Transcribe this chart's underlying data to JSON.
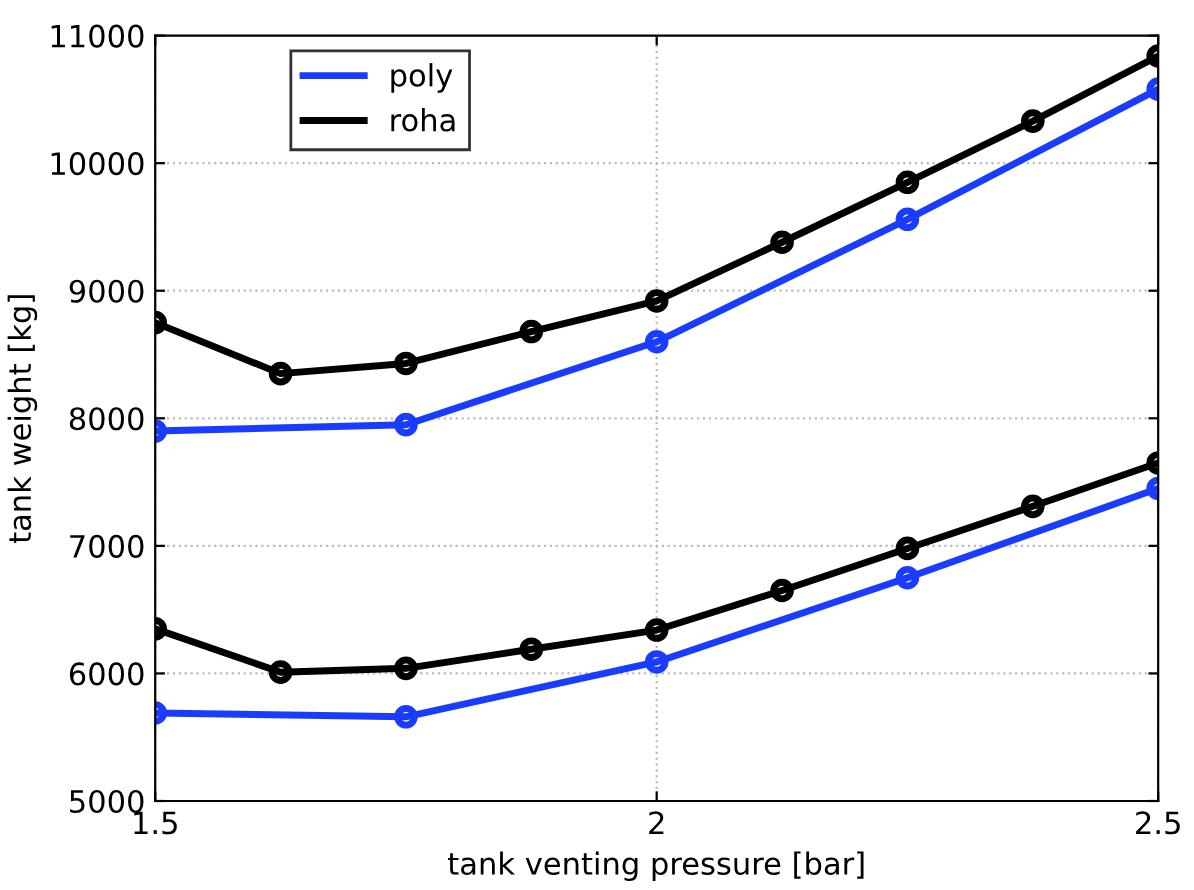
{
  "chart_data": {
    "type": "line",
    "xlabel": "tank venting pressure [bar]",
    "ylabel": "tank weight [kg]",
    "xlim": [
      1.5,
      2.5
    ],
    "xticks": [
      1.5,
      2,
      2.5
    ],
    "ylim": [
      5000,
      11000
    ],
    "yticks": [
      5000,
      6000,
      7000,
      8000,
      9000,
      10000,
      11000
    ],
    "grid": true,
    "legend": "top left",
    "marker": "circle",
    "line_style": "solid",
    "series": [
      {
        "name": "poly",
        "color": "#1a3cff",
        "x": [
          1.5,
          1.75,
          2,
          2.25,
          2.5
        ],
        "values": [
          7900,
          7950,
          8600,
          9560,
          10580
        ]
      },
      {
        "name": "roha",
        "color": "#000000",
        "x": [
          1.5,
          1.625,
          1.75,
          1.875,
          2,
          2.125,
          2.25,
          2.375,
          2.5
        ],
        "values": [
          8750,
          8350,
          8430,
          8680,
          8920,
          9380,
          9850,
          10330,
          10840
        ]
      },
      {
        "color": "#1a3cff",
        "x": [
          1.5,
          1.75,
          2,
          2.25,
          2.5
        ],
        "values": [
          5690,
          5660,
          6090,
          6750,
          7450
        ]
      },
      {
        "color": "#000000",
        "x": [
          1.5,
          1.625,
          1.75,
          1.875,
          2,
          2.125,
          2.25,
          2.375,
          2.5
        ],
        "values": [
          6350,
          6010,
          6040,
          6190,
          6340,
          6650,
          6980,
          7310,
          7650
        ]
      }
    ]
  }
}
